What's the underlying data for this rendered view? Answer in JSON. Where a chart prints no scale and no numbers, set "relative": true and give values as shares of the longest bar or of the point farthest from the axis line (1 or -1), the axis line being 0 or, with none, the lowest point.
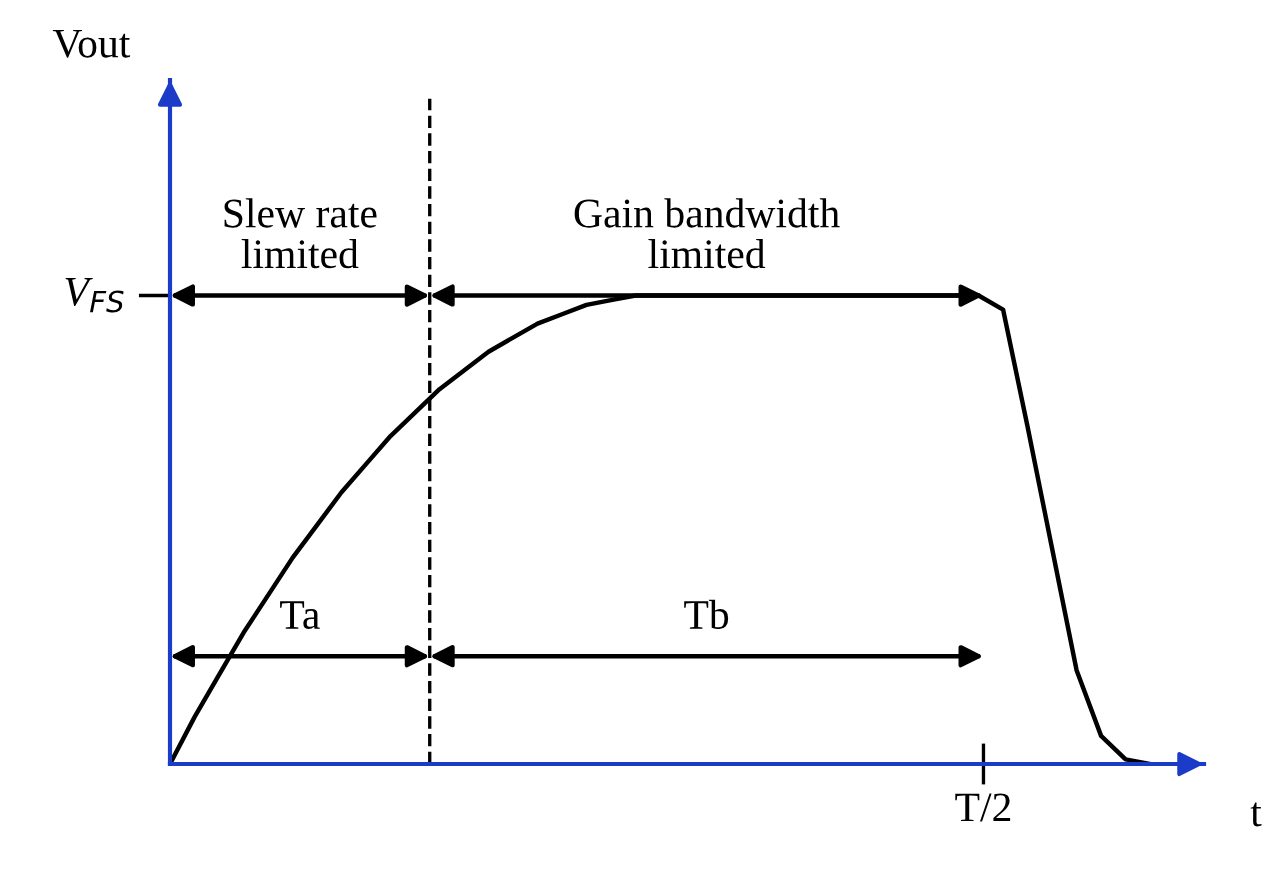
{
  "chart_data": {
    "type": "line",
    "relative": true,
    "xlabel": "t",
    "categories": [
      null,
      null,
      null,
      null,
      null,
      null,
      null,
      null,
      null,
      null,
      null,
      null,
      null,
      null,
      null,
      null,
      null,
      null,
      null,
      null,
      null,
      null,
      null,
      null,
      null,
      null,
      null,
      null,
      null,
      null,
      null,
      null,
      null,
      null,
      null,
      null,
      null,
      null,
      null,
      null,
      null
    ],
    "series": [
      {
        "color": "#000000",
        "values": [
          0,
          0.1,
          0.19,
          0.28,
          0.36,
          0.44,
          0.51,
          0.58,
          0.64,
          0.7,
          0.75,
          0.8,
          0.84,
          0.88,
          0.91,
          0.94,
          0.96,
          0.98,
          0.99,
          1,
          1,
          1,
          1,
          1,
          1,
          1,
          1,
          1,
          1,
          1,
          1,
          1,
          1,
          1,
          0.97,
          0.72,
          0.46,
          0.2,
          0.06,
          0.01,
          0
        ]
      }
    ],
    "annotations": [
      "Vout",
      "V$_{FS}$",
      "T/2",
      "Slew rate\nlimited",
      "Gain bandwidth\nlimited",
      "Ta",
      "Tb"
    ],
    "grid": false,
    "marker": "none",
    "line_style": "solid"
  }
}
